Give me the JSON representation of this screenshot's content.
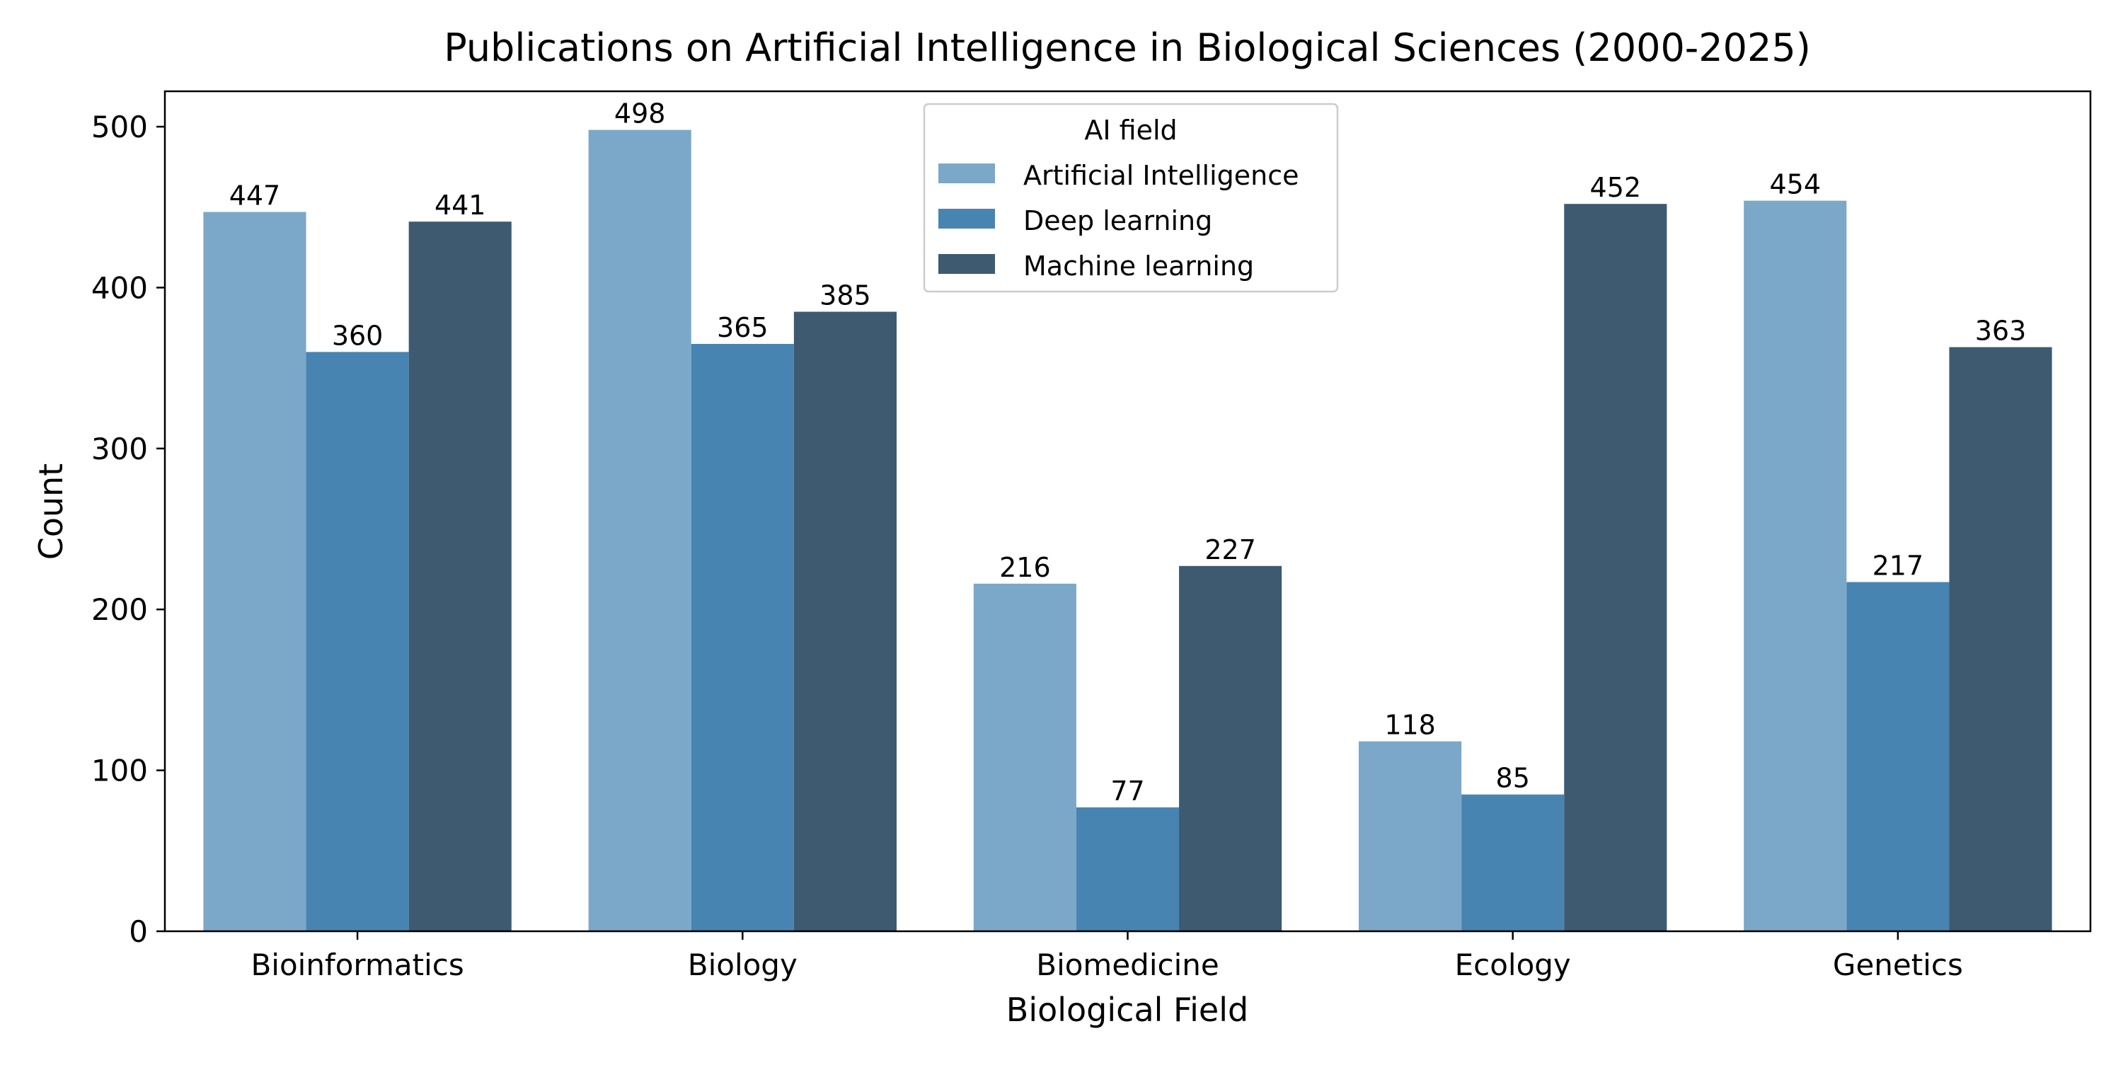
{
  "chart_data": {
    "type": "bar",
    "title": "Publications on Artificial Intelligence in Biological Sciences (2000-2025)",
    "xlabel": "Biological Field",
    "ylabel": "Count",
    "categories": [
      "Bioinformatics",
      "Biology",
      "Biomedicine",
      "Ecology",
      "Genetics"
    ],
    "series": [
      {
        "name": "Artificial Intelligence",
        "color": "#7ba8c9",
        "values": [
          447,
          498,
          216,
          118,
          454
        ]
      },
      {
        "name": "Deep learning",
        "color": "#4884b1",
        "values": [
          360,
          365,
          77,
          85,
          217
        ]
      },
      {
        "name": "Machine learning",
        "color": "#3d5a70",
        "values": [
          441,
          385,
          227,
          452,
          363
        ]
      }
    ],
    "ylim": [
      0,
      522
    ],
    "yticks": [
      0,
      100,
      200,
      300,
      400,
      500
    ],
    "grid": false,
    "legend": {
      "title": "AI field",
      "placement": "upper-center"
    },
    "data_labels": true
  }
}
